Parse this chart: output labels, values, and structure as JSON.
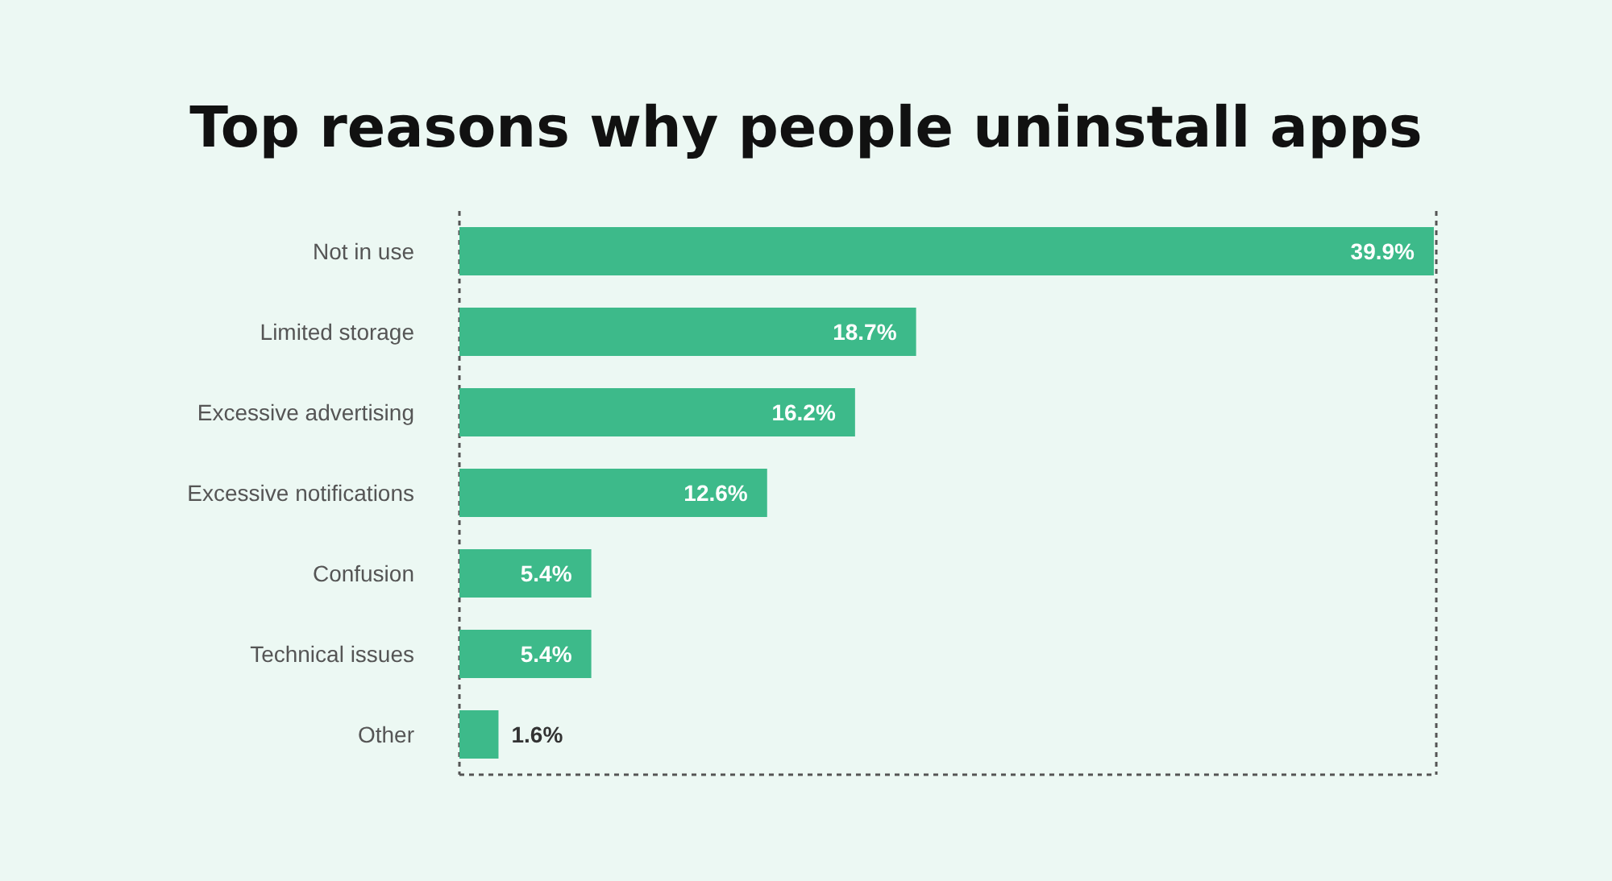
{
  "chart_data": {
    "type": "bar",
    "orientation": "horizontal",
    "title": "Top reasons why people uninstall apps",
    "categories": [
      "Not in use",
      "Limited storage",
      "Excessive advertising",
      "Excessive notifications",
      "Confusion",
      "Technical issues",
      "Other"
    ],
    "values": [
      39.9,
      18.7,
      16.2,
      12.6,
      5.4,
      5.4,
      1.6
    ],
    "value_labels": [
      "39.9%",
      "18.7%",
      "16.2%",
      "12.6%",
      "5.4%",
      "5.4%",
      "1.6%"
    ],
    "color": "#3dba8a",
    "xlim": [
      0,
      40
    ],
    "grid": "x",
    "tick_labels": "y",
    "legend": false
  }
}
